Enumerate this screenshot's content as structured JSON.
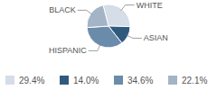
{
  "chart_data": {
    "type": "pie",
    "categories": [
      "WHITE",
      "ASIAN",
      "HISPANIC",
      "BLACK"
    ],
    "values": [
      29.4,
      14.0,
      34.6,
      22.1
    ],
    "value_labels": [
      "29.4%",
      "14.0%",
      "34.6%",
      "22.1%"
    ],
    "colors": [
      "#d5dde6",
      "#2f5a7e",
      "#6b8bab",
      "#a3b4c6"
    ],
    "legend": "bottom"
  }
}
